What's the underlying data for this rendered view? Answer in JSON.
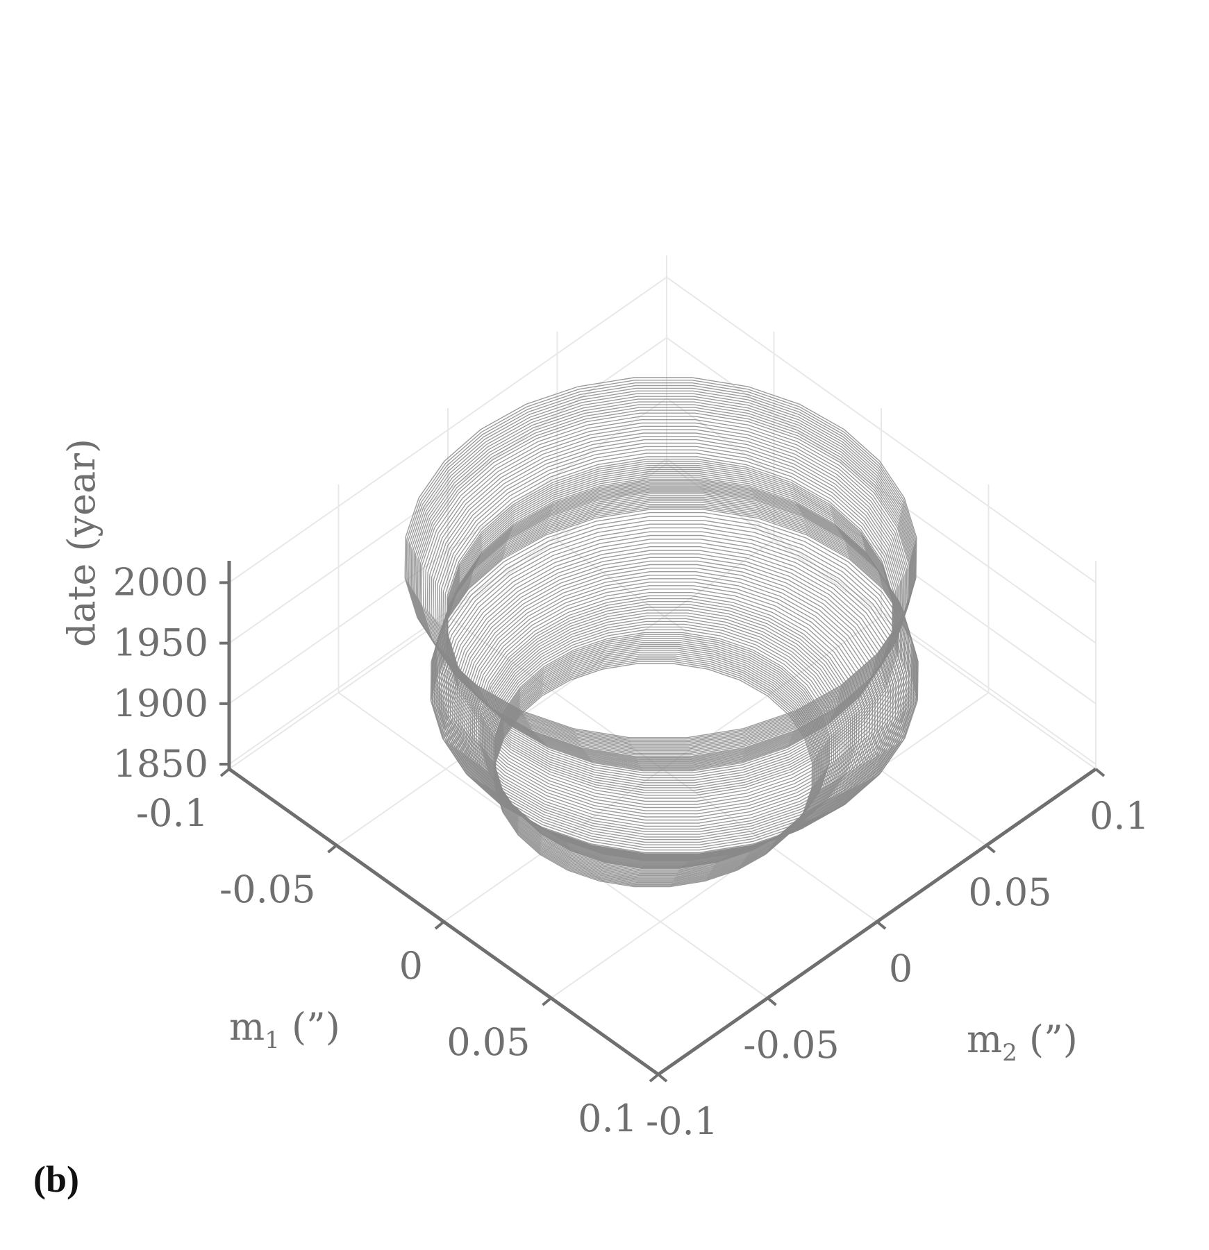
{
  "panel_label": "(b)",
  "chart_data": {
    "type": "surface3d",
    "title": "",
    "xlabel": "m",
    "xlabel_sub": "1",
    "xlabel_unit": " (”)",
    "ylabel": "m",
    "ylabel_sub": "2",
    "ylabel_unit": " (”)",
    "zlabel": "date (year)",
    "x_ticks": [
      -0.1,
      -0.05,
      0,
      0.05,
      0.1
    ],
    "x_tick_labels": [
      "-0.1",
      "-0.05",
      "0",
      "0.05",
      "0.1"
    ],
    "y_ticks": [
      -0.1,
      -0.05,
      0,
      0.05,
      0.1
    ],
    "y_tick_labels": [
      "-0.1",
      "-0.05",
      "0",
      "0.05",
      "0.1"
    ],
    "z_ticks": [
      1850,
      1900,
      1950,
      2000
    ],
    "z_tick_labels": [
      "1850",
      "1900",
      "1950",
      "2000"
    ],
    "xlim": [
      -0.1,
      0.1
    ],
    "ylim": [
      -0.1,
      0.1
    ],
    "zlim": [
      1846,
      2018
    ],
    "grid": true,
    "colors": {
      "surface": "#8a8a8a",
      "axis": "#6f6f6f",
      "grid": "#e8e8e8"
    },
    "surface": {
      "description_units": "polar-motion path: center (m1, m2) in arcsec and radius vs year",
      "date_range": [
        1846,
        2010
      ],
      "profile": [
        {
          "year": 1846,
          "radius": 0.052
        },
        {
          "year": 1870,
          "radius": 0.055
        },
        {
          "year": 1890,
          "radius": 0.062
        },
        {
          "year": 1910,
          "radius": 0.072
        },
        {
          "year": 1925,
          "radius": 0.08
        },
        {
          "year": 1940,
          "radius": 0.078
        },
        {
          "year": 1955,
          "radius": 0.074
        },
        {
          "year": 1970,
          "radius": 0.073
        },
        {
          "year": 1990,
          "radius": 0.08
        },
        {
          "year": 2010,
          "radius": 0.084
        }
      ]
    }
  }
}
